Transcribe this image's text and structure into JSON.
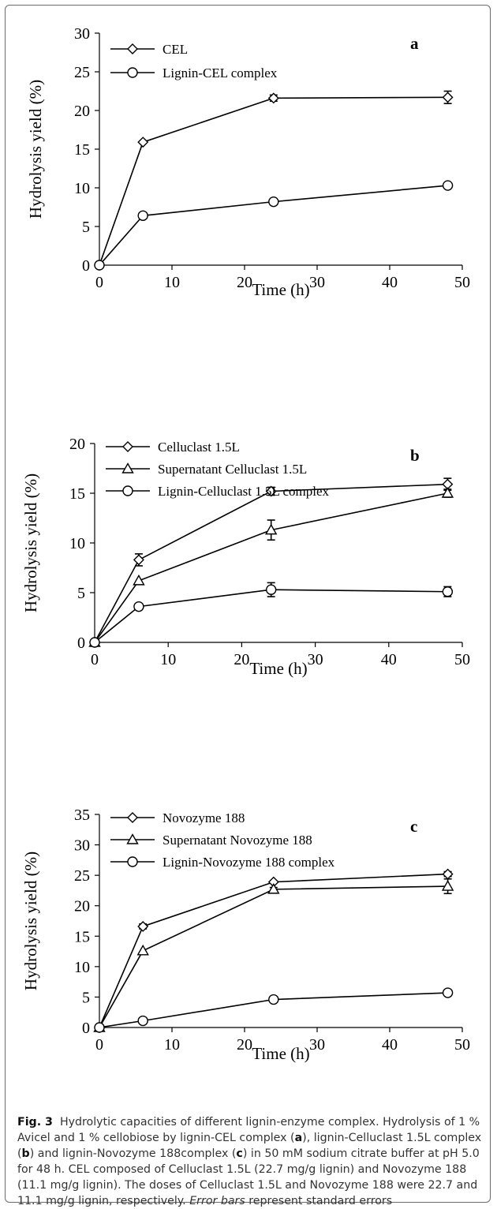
{
  "chart_data": [
    {
      "panel": "a",
      "type": "line",
      "xlabel": "Time (h)",
      "ylabel": "Hydrolysis  yield (%)",
      "xlim": [
        0,
        50
      ],
      "ylim": [
        0,
        30
      ],
      "xticks": [
        "0",
        "10",
        "20",
        "30",
        "40",
        "50"
      ],
      "yticks": [
        "0",
        "5",
        "10",
        "15",
        "20",
        "25",
        "30"
      ],
      "legend_position": "top-left",
      "series": [
        {
          "name": "CEL",
          "marker": "diamond",
          "x": [
            0,
            6,
            24,
            48
          ],
          "y": [
            0,
            15.9,
            21.6,
            21.7
          ],
          "err": [
            0,
            0,
            0.4,
            0.8
          ]
        },
        {
          "name": "Lignin-CEL complex",
          "marker": "circle",
          "x": [
            0,
            6,
            24,
            48
          ],
          "y": [
            0,
            6.4,
            8.2,
            10.3
          ],
          "err": [
            0,
            0,
            0,
            0
          ]
        }
      ]
    },
    {
      "panel": "b",
      "type": "line",
      "xlabel": "Time (h)",
      "ylabel": "Hydrolysis yield (%)",
      "xlim": [
        0,
        50
      ],
      "ylim": [
        0,
        20
      ],
      "xticks": [
        "0",
        "10",
        "20",
        "30",
        "40",
        "50"
      ],
      "yticks": [
        "0",
        "5",
        "10",
        "15",
        "20"
      ],
      "legend_position": "top-left",
      "series": [
        {
          "name": "Celluclast 1.5L",
          "marker": "diamond",
          "x": [
            0,
            6,
            24,
            48
          ],
          "y": [
            0,
            8.3,
            15.2,
            15.9
          ],
          "err": [
            0,
            0.6,
            0.4,
            0.6
          ]
        },
        {
          "name": "Supernatant Celluclast 1.5L",
          "marker": "triangle",
          "x": [
            0,
            6,
            24,
            48
          ],
          "y": [
            0,
            6.2,
            11.3,
            15.0
          ],
          "err": [
            0,
            0,
            1.0,
            0.4
          ]
        },
        {
          "name": "Lignin-Celluclast 1.5L complex",
          "marker": "circle",
          "x": [
            0,
            6,
            24,
            48
          ],
          "y": [
            0,
            3.6,
            5.3,
            5.1
          ],
          "err": [
            0,
            0,
            0.7,
            0.5
          ]
        }
      ]
    },
    {
      "panel": "c",
      "type": "line",
      "xlabel": "Time (h)",
      "ylabel": "Hydrolysis yield (%)",
      "xlim": [
        0,
        50
      ],
      "ylim": [
        0,
        35
      ],
      "xticks": [
        "0",
        "10",
        "20",
        "30",
        "40",
        "50"
      ],
      "yticks": [
        "0",
        "5",
        "10",
        "15",
        "20",
        "25",
        "30",
        "35"
      ],
      "legend_position": "top-left",
      "series": [
        {
          "name": "Novozyme 188",
          "marker": "diamond",
          "x": [
            0,
            6,
            24,
            48
          ],
          "y": [
            0,
            16.6,
            23.9,
            25.2
          ],
          "err": [
            0,
            0.4,
            0,
            0.4
          ]
        },
        {
          "name": "Supernatant Novozyme 188",
          "marker": "triangle",
          "x": [
            0,
            6,
            24,
            48
          ],
          "y": [
            0,
            12.6,
            22.7,
            23.2
          ],
          "err": [
            0,
            0,
            0.3,
            1.2
          ]
        },
        {
          "name": "Lignin-Novozyme 188 complex",
          "marker": "circle",
          "x": [
            0,
            6,
            24,
            48
          ],
          "y": [
            0,
            1.1,
            4.6,
            5.7
          ],
          "err": [
            0,
            0,
            0,
            0
          ]
        }
      ]
    }
  ],
  "caption": {
    "label": "Fig. 3",
    "title": "Hydrolytic capacities of different lignin-enzyme complex.",
    "text_1": "Hydrolysis of 1 % Avicel and 1 % cellobiose by lignin-CEL complex (",
    "a": "a",
    "text_2": "), lignin-Celluclast 1.5L complex (",
    "b": "b",
    "text_3": ") and lignin-Novozyme 188complex (",
    "c": "c",
    "text_4": ") in 50 mM sodium citrate buffer at pH 5.0 for 48 h. CEL composed of Celluclast 1.5L (22.7 mg/g lignin) and Novozyme 188 (11.1 mg/g lignin). The doses of Celluclast 1.5L and Novozyme 188 were 22.7 and 11.1 mg/g lignin, respectively. ",
    "error_bars": "Error bars",
    "text_5": " represent standard errors"
  }
}
